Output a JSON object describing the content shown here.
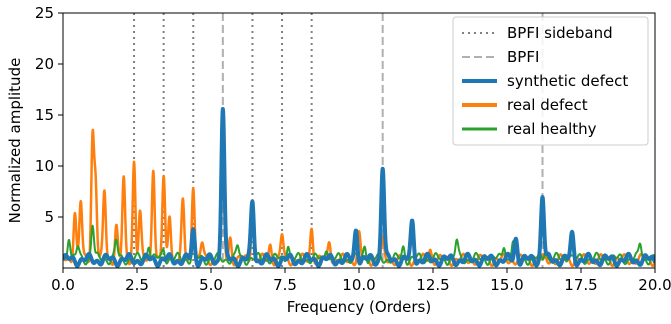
{
  "chart_data": {
    "type": "line",
    "xlabel": "Frequency (Orders)",
    "ylabel": "Normalized amplitude",
    "xlim": [
      0,
      20
    ],
    "ylim": [
      0,
      25
    ],
    "x_ticks": [
      0,
      2.5,
      5,
      7.5,
      10,
      12.5,
      15,
      17.5,
      20
    ],
    "x_tick_labels": [
      "0.0",
      "2.5",
      "5.0",
      "7.5",
      "10.0",
      "12.5",
      "15.0",
      "17.5",
      "20.0"
    ],
    "y_ticks": [
      5,
      10,
      15,
      20,
      25
    ],
    "y_tick_labels": [
      "5",
      "10",
      "15",
      "20",
      "25"
    ],
    "grid": false,
    "legend_position": "top-right",
    "reference_lines": [
      {
        "name": "BPFI sideband",
        "style": "dotted",
        "color": "#808080",
        "x": [
          2.4,
          3.4,
          4.4,
          6.4,
          7.4,
          8.4
        ]
      },
      {
        "name": "BPFI",
        "style": "dashed",
        "color": "#b0b0b0",
        "x": [
          5.4,
          10.8,
          16.2
        ]
      }
    ],
    "series": [
      {
        "name": "synthetic defect",
        "color": "#1f77b4",
        "width": 4,
        "baseline": 0.8,
        "peaks": [
          [
            4.4,
            3.6
          ],
          [
            5.4,
            15.8
          ],
          [
            6.4,
            6.5
          ],
          [
            9.9,
            3.8
          ],
          [
            10.8,
            10.0
          ],
          [
            11.8,
            4.4
          ],
          [
            15.3,
            2.9
          ],
          [
            16.2,
            7.1
          ],
          [
            17.2,
            3.2
          ]
        ]
      },
      {
        "name": "real defect",
        "color": "#ff7f0e",
        "width": 2.5,
        "baseline": 0.8,
        "peaks": [
          [
            0.4,
            5.7
          ],
          [
            0.6,
            6.5
          ],
          [
            1.0,
            12.9
          ],
          [
            1.1,
            8.5
          ],
          [
            1.4,
            7.5
          ],
          [
            1.8,
            4.2
          ],
          [
            2.05,
            8.6
          ],
          [
            2.4,
            10.5
          ],
          [
            2.6,
            5.3
          ],
          [
            3.05,
            10.1
          ],
          [
            3.4,
            8.7
          ],
          [
            3.6,
            5.5
          ],
          [
            4.05,
            6.3
          ],
          [
            4.4,
            8.4
          ],
          [
            4.7,
            2.4
          ],
          [
            5.4,
            10.6
          ],
          [
            5.65,
            3.0
          ],
          [
            6.4,
            5.6
          ],
          [
            7.0,
            2.3
          ],
          [
            7.4,
            3.2
          ],
          [
            8.4,
            4.0
          ],
          [
            9.0,
            2.8
          ],
          [
            10.0,
            3.2
          ],
          [
            10.8,
            2.5
          ],
          [
            12.4,
            1.9
          ]
        ]
      },
      {
        "name": "real healthy",
        "color": "#2ca02c",
        "width": 2,
        "baseline": 0.9,
        "peaks": [
          [
            0.2,
            3.3
          ],
          [
            0.5,
            2.0
          ],
          [
            1.0,
            4.3
          ],
          [
            1.8,
            2.6
          ],
          [
            2.9,
            2.5
          ],
          [
            3.4,
            1.9
          ],
          [
            4.4,
            2.0
          ],
          [
            5.9,
            2.1
          ],
          [
            7.6,
            2.5
          ],
          [
            8.9,
            2.2
          ],
          [
            10.2,
            2.3
          ],
          [
            11.5,
            2.0
          ],
          [
            13.3,
            2.6
          ],
          [
            14.9,
            2.4
          ],
          [
            15.2,
            2.7
          ],
          [
            16.3,
            2.0
          ],
          [
            17.1,
            1.8
          ],
          [
            19.5,
            2.4
          ]
        ]
      }
    ]
  }
}
